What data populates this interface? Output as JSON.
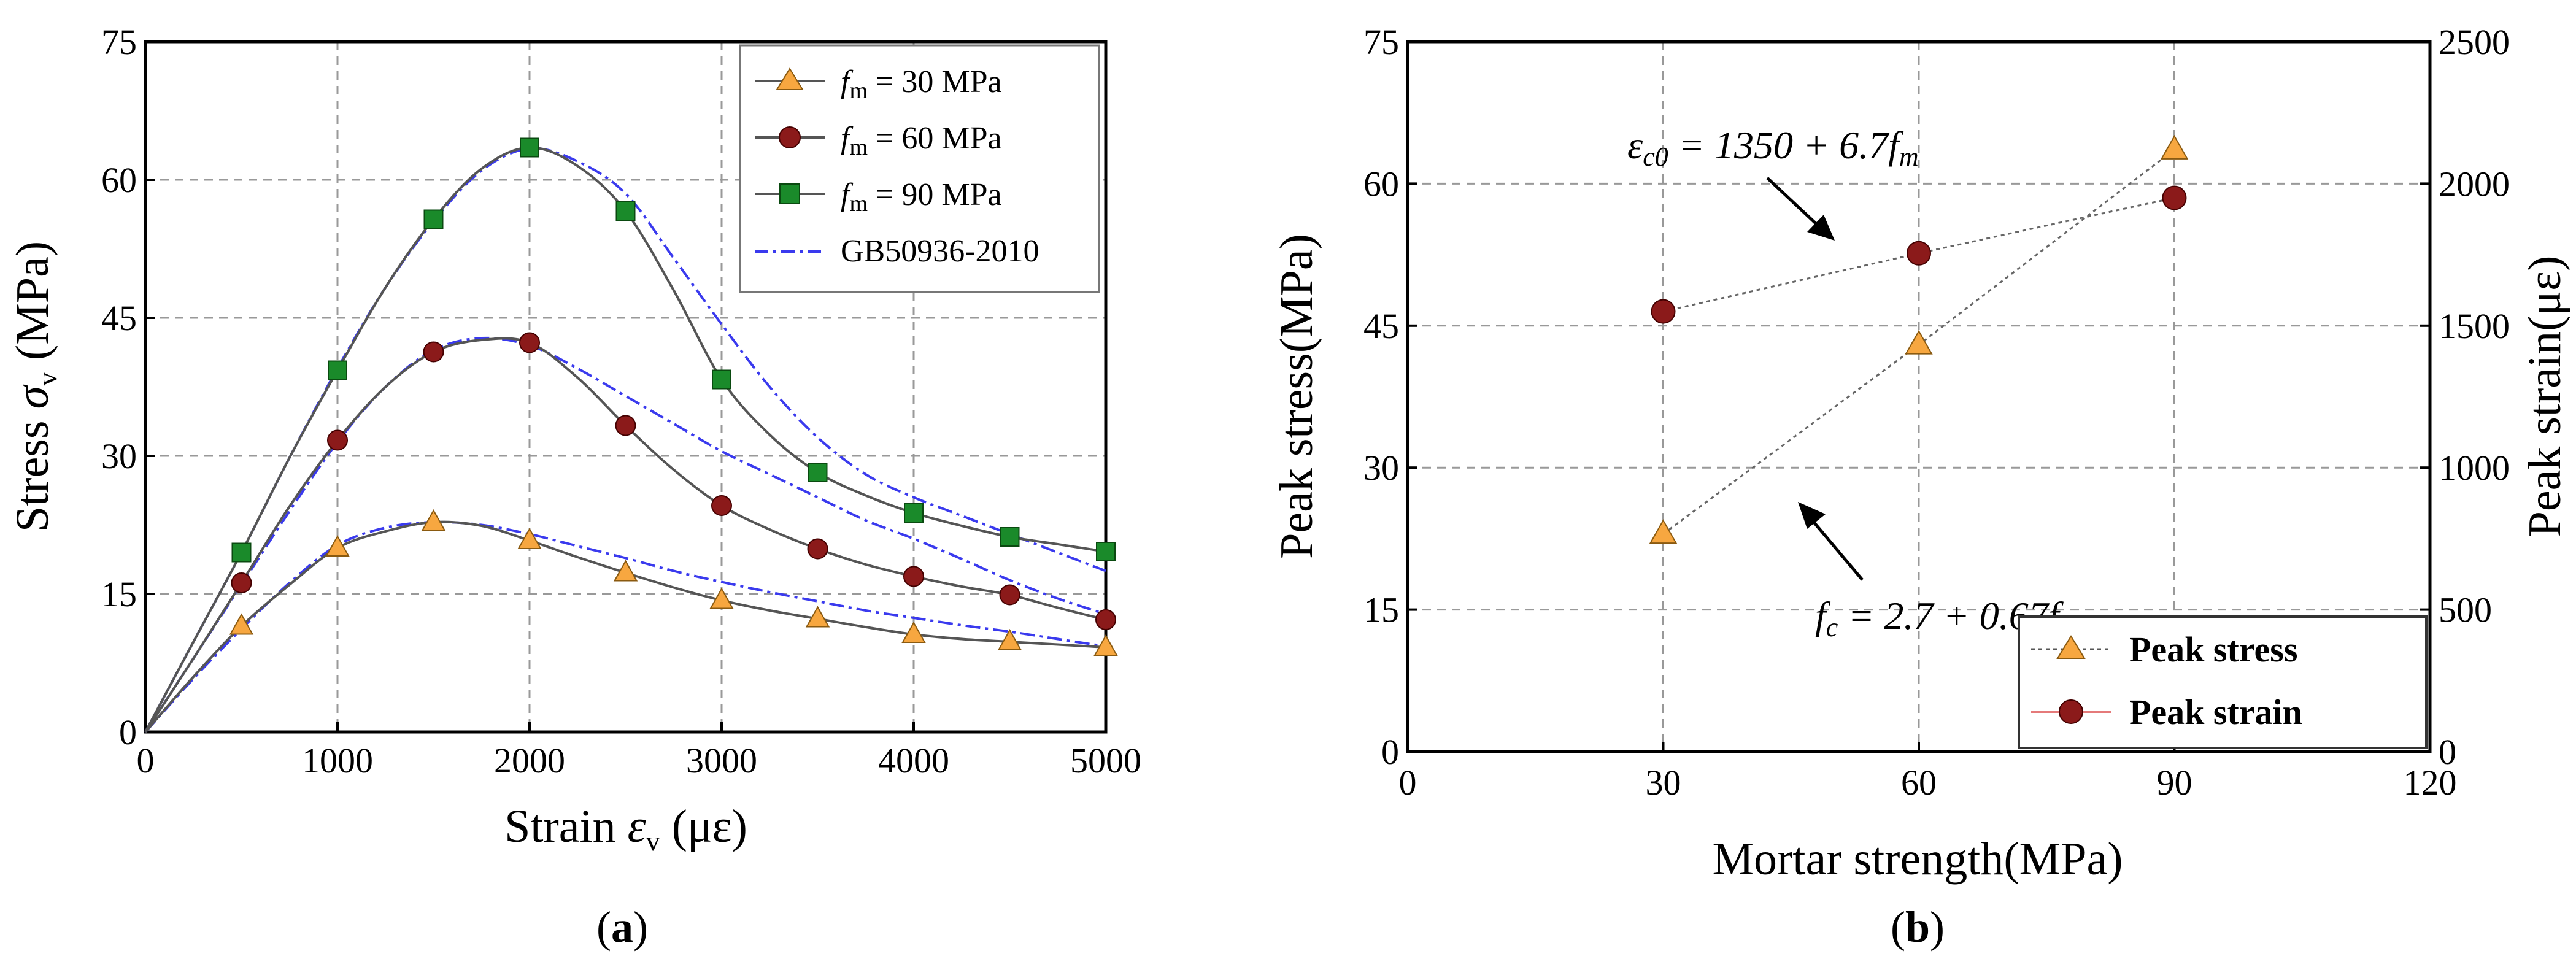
{
  "chart_data": [
    {
      "type": "line",
      "panel_label": "a",
      "title": "",
      "xlabel_text": "Strain",
      "xlabel_symbol": "ε",
      "xlabel_sub": "v",
      "xlabel_unit": "(με)",
      "ylabel_text": "Stress",
      "ylabel_symbol": "σ",
      "ylabel_sub": "v",
      "ylabel_unit": "(MPa)",
      "xlim": [
        0,
        5000
      ],
      "ylim": [
        0,
        75
      ],
      "xticks": [
        0,
        1000,
        2000,
        3000,
        4000,
        5000
      ],
      "yticks": [
        0,
        15,
        30,
        45,
        60,
        75
      ],
      "grid": true,
      "legend_position": "top-right",
      "series": [
        {
          "name": "f_m = 30 MPa",
          "legend_symbol": "f",
          "legend_sub": "m",
          "legend_rest": " = 30 MPa",
          "marker": "triangle",
          "marker_color": "#f7a740",
          "line_color": "#555555",
          "x": [
            0,
            250,
            500,
            750,
            1000,
            1250,
            1500,
            1750,
            2000,
            2250,
            2500,
            2750,
            3000,
            3250,
            3500,
            3750,
            4000,
            4250,
            4500,
            4750,
            5000
          ],
          "y": [
            0,
            6,
            11.5,
            16,
            20,
            21.8,
            22.8,
            22.4,
            20.8,
            19,
            17.3,
            15.7,
            14.3,
            13.2,
            12.3,
            11.4,
            10.6,
            10.1,
            9.8,
            9.5,
            9.2
          ],
          "marker_x": [
            500,
            1000,
            1500,
            2000,
            2500,
            3000,
            3500,
            4000,
            4500,
            5000
          ],
          "marker_y": [
            11.5,
            20,
            22.8,
            20.8,
            17.3,
            14.3,
            12.3,
            10.6,
            9.8,
            9.2
          ]
        },
        {
          "name": "f_m = 60 MPa",
          "legend_symbol": "f",
          "legend_sub": "m",
          "legend_rest": " = 60 MPa",
          "marker": "circle",
          "marker_color": "#8b1a1a",
          "line_color": "#555555",
          "x": [
            0,
            250,
            500,
            750,
            1000,
            1250,
            1500,
            1750,
            2000,
            2250,
            2500,
            2750,
            3000,
            3250,
            3500,
            3750,
            4000,
            4250,
            4500,
            4750,
            5000
          ],
          "y": [
            0,
            8,
            16.2,
            24.5,
            31.7,
            37.5,
            41.3,
            42.6,
            42.3,
            38.5,
            33.3,
            28.5,
            24.6,
            22,
            19.9,
            18.2,
            16.9,
            15.8,
            14.9,
            13.5,
            12.2
          ],
          "marker_x": [
            500,
            1000,
            1500,
            2000,
            2500,
            3000,
            3500,
            4000,
            4500,
            5000
          ],
          "marker_y": [
            16.2,
            31.7,
            41.3,
            42.3,
            33.3,
            24.6,
            19.9,
            16.9,
            14.9,
            12.2
          ]
        },
        {
          "name": "f_m = 90 MPa",
          "legend_symbol": "f",
          "legend_sub": "m",
          "legend_rest": " = 90 MPa",
          "marker": "square",
          "marker_color": "#1a8a2a",
          "line_color": "#555555",
          "x": [
            0,
            250,
            500,
            750,
            1000,
            1250,
            1500,
            1750,
            2000,
            2250,
            2500,
            2750,
            3000,
            3250,
            3500,
            3750,
            4000,
            4250,
            4500,
            4750,
            5000
          ],
          "y": [
            0,
            9.8,
            19.5,
            29.8,
            39.3,
            48.3,
            55.7,
            61.2,
            63.5,
            61.5,
            56.6,
            48,
            38.3,
            32.3,
            28.2,
            25.7,
            23.8,
            22.4,
            21.2,
            20.4,
            19.6
          ],
          "marker_x": [
            500,
            1000,
            1500,
            2000,
            2500,
            3000,
            3500,
            4000,
            4500,
            5000
          ],
          "marker_y": [
            19.5,
            39.3,
            55.7,
            63.5,
            56.6,
            38.3,
            28.2,
            23.8,
            21.2,
            19.6
          ]
        },
        {
          "name": "GB50936-2010",
          "legend_rest": "GB50936-2010",
          "marker": "none",
          "line_color": "#3a3aee",
          "dash": true,
          "curves": [
            {
              "x": [
                0,
                250,
                500,
                750,
                1000,
                1250,
                1500,
                1750,
                2000,
                2250,
                2500,
                2750,
                3000,
                3250,
                3500,
                3750,
                4000,
                4250,
                4500,
                4750,
                5000
              ],
              "y": [
                0,
                5.8,
                11.2,
                16.2,
                20.3,
                22.2,
                22.8,
                22.5,
                21.5,
                20.2,
                18.9,
                17.5,
                16.3,
                15.2,
                14.2,
                13.2,
                12.4,
                11.6,
                10.9,
                10.1,
                9.3
              ]
            },
            {
              "x": [
                0,
                250,
                500,
                750,
                1000,
                1250,
                1500,
                1750,
                2000,
                2250,
                2500,
                2750,
                3000,
                3250,
                3500,
                3750,
                4000,
                4250,
                4500,
                4750,
                5000
              ],
              "y": [
                0,
                8,
                16,
                24,
                31.5,
                37.5,
                41.5,
                42.8,
                42,
                39.5,
                36.5,
                33.5,
                30.5,
                28,
                25.5,
                23,
                21,
                18.8,
                16.5,
                14.5,
                12.8
              ]
            },
            {
              "x": [
                0,
                250,
                500,
                750,
                1000,
                1250,
                1500,
                1750,
                2000,
                2250,
                2500,
                2750,
                3000,
                3250,
                3500,
                3750,
                4000,
                4250,
                4500,
                4750,
                5000
              ],
              "y": [
                0,
                9.8,
                19.5,
                29.8,
                39.5,
                48.3,
                55.5,
                61,
                63.4,
                62,
                58.5,
                51.5,
                44.3,
                37.5,
                32,
                28,
                25.5,
                23.5,
                21.5,
                19.5,
                17.5
              ]
            }
          ]
        }
      ]
    },
    {
      "type": "scatter",
      "panel_label": "b",
      "title": "",
      "xlabel": "Mortar strength(MPa)",
      "ylabel_left": "Peak stress(MPa)",
      "ylabel_right": "Peak strain(με)",
      "xlim": [
        0,
        120
      ],
      "ylim_left": [
        0,
        75
      ],
      "ylim_right": [
        0,
        2500
      ],
      "xticks": [
        0,
        30,
        60,
        90,
        120
      ],
      "yticks_left": [
        0,
        15,
        30,
        45,
        60,
        75
      ],
      "yticks_right": [
        0,
        500,
        1000,
        1500,
        2000,
        2500
      ],
      "grid": true,
      "legend_position": "bottom-right",
      "series": [
        {
          "name": "Peak stress",
          "axis": "left",
          "marker": "triangle",
          "marker_color": "#f7a740",
          "line_color": "#555555",
          "x": [
            30,
            60,
            90
          ],
          "y": [
            23,
            43,
            63.6
          ]
        },
        {
          "name": "Peak strain",
          "axis": "right",
          "marker": "circle",
          "marker_color": "#8b1a1a",
          "line_color": "#e57a7a",
          "x": [
            30,
            60,
            90
          ],
          "y": [
            1550,
            1755,
            1950
          ]
        }
      ],
      "annotations": [
        {
          "id": "strain-eq",
          "text_lhs": "ε",
          "text_lhs_sub": "c0",
          "text_rhs": " = 1350 + 6.7",
          "text_var": "f",
          "text_var_sub": "m",
          "arrow_to": [
            46,
            53
          ]
        },
        {
          "id": "stress-eq",
          "text_lhs": "f",
          "text_lhs_sub": "c",
          "text_rhs": " = 2.7 + 0.67",
          "text_var": "f",
          "text_var_sub": "m",
          "arrow_to": [
            46,
            34
          ]
        }
      ]
    }
  ]
}
